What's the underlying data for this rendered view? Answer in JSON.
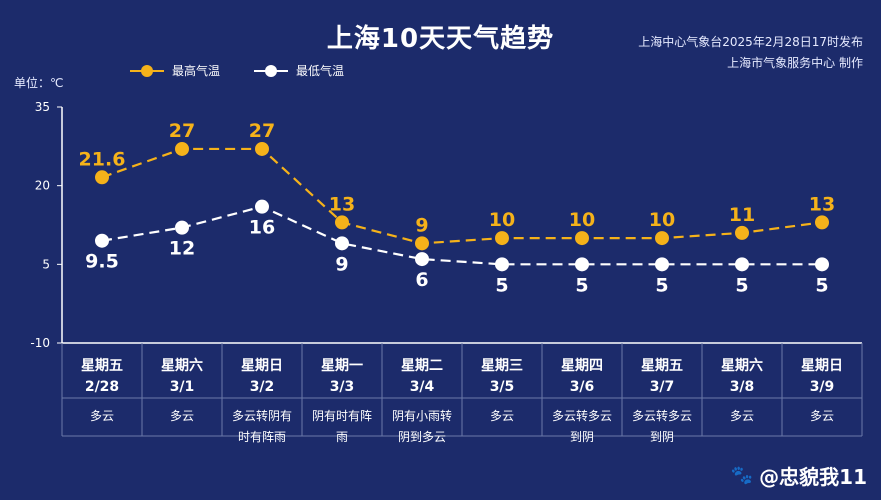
{
  "header": {
    "title": "上海10天天气趋势",
    "publisher_line1": "上海中心气象台2025年2月28日17时发布",
    "publisher_line2": "上海市气象服务中心 制作",
    "unit": "单位：℃"
  },
  "footer": {
    "watermark": "@忠貌我11"
  },
  "colors": {
    "background": "#1c2b6b",
    "high": "#f5b21a",
    "low": "#ffffff",
    "grid": "#6b7aa8"
  },
  "chart_data": {
    "type": "line",
    "categories_weekday": [
      "星期五",
      "星期六",
      "星期日",
      "星期一",
      "星期二",
      "星期三",
      "星期四",
      "星期五",
      "星期六",
      "星期日"
    ],
    "categories_date": [
      "2/28",
      "3/1",
      "3/2",
      "3/3",
      "3/4",
      "3/5",
      "3/6",
      "3/7",
      "3/8",
      "3/9"
    ],
    "weather": [
      [
        "多云"
      ],
      [
        "多云"
      ],
      [
        "多云转阴有",
        "时有阵雨"
      ],
      [
        "阴有时有阵",
        "雨"
      ],
      [
        "阴有小雨转",
        "阴到多云"
      ],
      [
        "多云"
      ],
      [
        "多云转多云",
        "到阴"
      ],
      [
        "多云转多云",
        "到阴"
      ],
      [
        "多云"
      ],
      [
        "多云"
      ]
    ],
    "series": [
      {
        "name": "最高气温",
        "values": [
          21.6,
          27,
          27,
          13,
          9,
          10,
          10,
          10,
          11,
          13
        ],
        "labels": [
          "21.6",
          "27",
          "27",
          "13",
          "9",
          "10",
          "10",
          "10",
          "11",
          "13"
        ]
      },
      {
        "name": "最低气温",
        "values": [
          9.5,
          12,
          16,
          9,
          6,
          5,
          5,
          5,
          5,
          5
        ],
        "labels": [
          "9.5",
          "12",
          "16",
          "9",
          "6",
          "5",
          "5",
          "5",
          "5",
          "5"
        ]
      }
    ],
    "y_ticks": [
      "35",
      "20",
      "5",
      "-10"
    ],
    "ylim": [
      -10,
      35
    ],
    "grid": false,
    "legend": "top-left"
  }
}
